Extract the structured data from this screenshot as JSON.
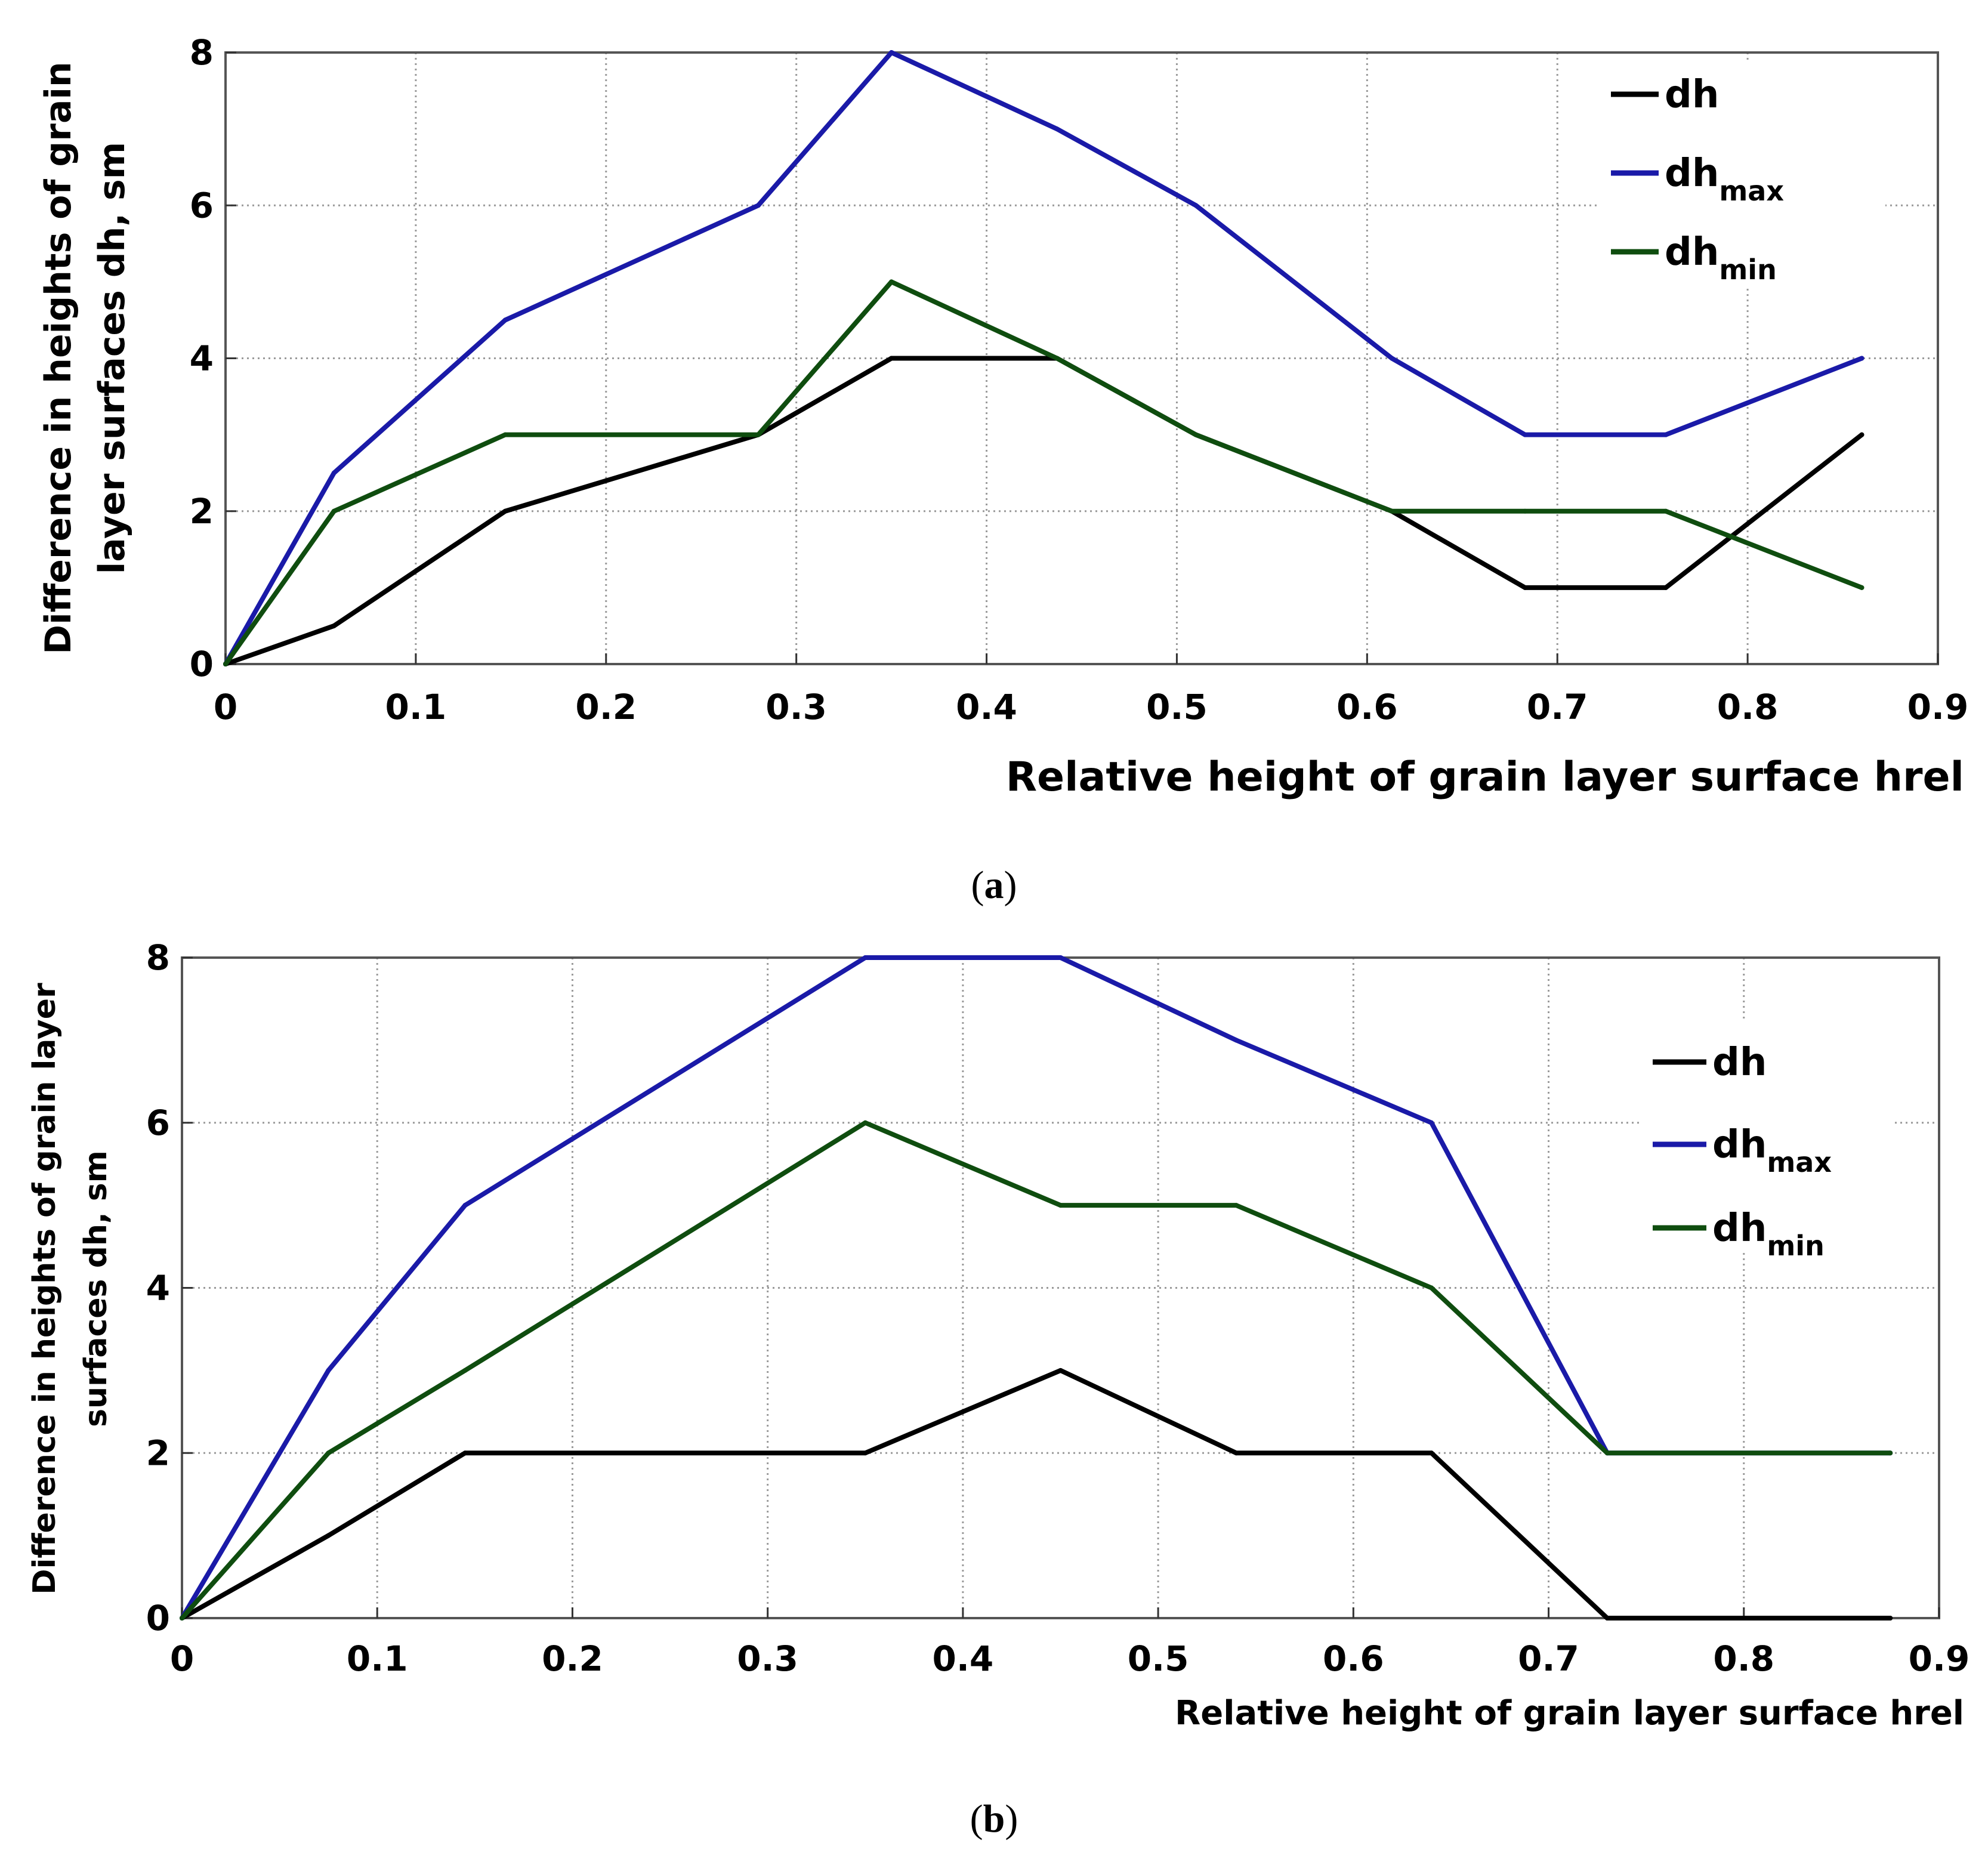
{
  "colors": {
    "dh": "#000000",
    "dh_max": "#1a1aa8",
    "dh_min": "#0f4d0f",
    "grid": "#9a9a9a"
  },
  "chart_data": [
    {
      "id": "a",
      "type": "line",
      "caption_label": "a",
      "xlabel": "Relative height of grain layer surface hrel",
      "ylabel_lines": [
        "Difference in heights of grain",
        "layer surfaces dh, sm"
      ],
      "xlim": [
        0,
        0.9
      ],
      "ylim": [
        0,
        8
      ],
      "xticks": [
        "0",
        "0.1",
        "0.2",
        "0.3",
        "0.4",
        "0.5",
        "0.6",
        "0.7",
        "0.8",
        "0.9"
      ],
      "yticks": [
        "0",
        "2",
        "4",
        "6",
        "8"
      ],
      "grid": true,
      "legend_position": "top-right",
      "series": [
        {
          "name": "dh",
          "base": "dh",
          "sub": "",
          "color_key": "dh",
          "x": [
            0,
            0.057,
            0.147,
            0.28,
            0.35,
            0.437,
            0.51,
            0.613,
            0.683,
            0.757,
            0.86
          ],
          "y": [
            0,
            0.5,
            2,
            3,
            4,
            4,
            3,
            2,
            1,
            1,
            3
          ]
        },
        {
          "name": "dhmax",
          "base": "dh",
          "sub": "max",
          "color_key": "dh_max",
          "x": [
            0,
            0.057,
            0.147,
            0.28,
            0.35,
            0.437,
            0.51,
            0.613,
            0.683,
            0.757,
            0.86
          ],
          "y": [
            0,
            2.5,
            4.5,
            6,
            8,
            7,
            6,
            4,
            3,
            3,
            4
          ]
        },
        {
          "name": "dhmin",
          "base": "dh",
          "sub": "min",
          "color_key": "dh_min",
          "x": [
            0,
            0.057,
            0.147,
            0.28,
            0.35,
            0.437,
            0.51,
            0.613,
            0.683,
            0.757,
            0.86
          ],
          "y": [
            0,
            2,
            3,
            3,
            5,
            4,
            3,
            2,
            2,
            2,
            1
          ]
        }
      ]
    },
    {
      "id": "b",
      "type": "line",
      "caption_label": "b",
      "xlabel": "Relative height of grain layer surface hrel",
      "ylabel_lines": [
        "Difference in heights of grain layer",
        "surfaces dh, sm"
      ],
      "xlim": [
        0,
        0.9
      ],
      "ylim": [
        0,
        8
      ],
      "xticks": [
        "0",
        "0.1",
        "0.2",
        "0.3",
        "0.4",
        "0.5",
        "0.6",
        "0.7",
        "0.8",
        "0.9"
      ],
      "yticks": [
        "0",
        "2",
        "4",
        "6",
        "8"
      ],
      "grid": true,
      "legend_position": "top-right",
      "series": [
        {
          "name": "dh",
          "base": "dh",
          "sub": "",
          "color_key": "dh",
          "x": [
            0,
            0.075,
            0.145,
            0.35,
            0.45,
            0.54,
            0.64,
            0.73,
            0.875
          ],
          "y": [
            0,
            1,
            2,
            2,
            3,
            2,
            2,
            0,
            0
          ]
        },
        {
          "name": "dhmax",
          "base": "dh",
          "sub": "max",
          "color_key": "dh_max",
          "x": [
            0,
            0.075,
            0.145,
            0.35,
            0.45,
            0.54,
            0.64,
            0.73,
            0.875
          ],
          "y": [
            0,
            3,
            5,
            8,
            8,
            7,
            6,
            2,
            2
          ]
        },
        {
          "name": "dhmin",
          "base": "dh",
          "sub": "min",
          "color_key": "dh_min",
          "x": [
            0,
            0.075,
            0.145,
            0.35,
            0.45,
            0.54,
            0.64,
            0.73,
            0.875
          ],
          "y": [
            0,
            2,
            3,
            6,
            5,
            5,
            4,
            2,
            2
          ]
        }
      ]
    }
  ]
}
